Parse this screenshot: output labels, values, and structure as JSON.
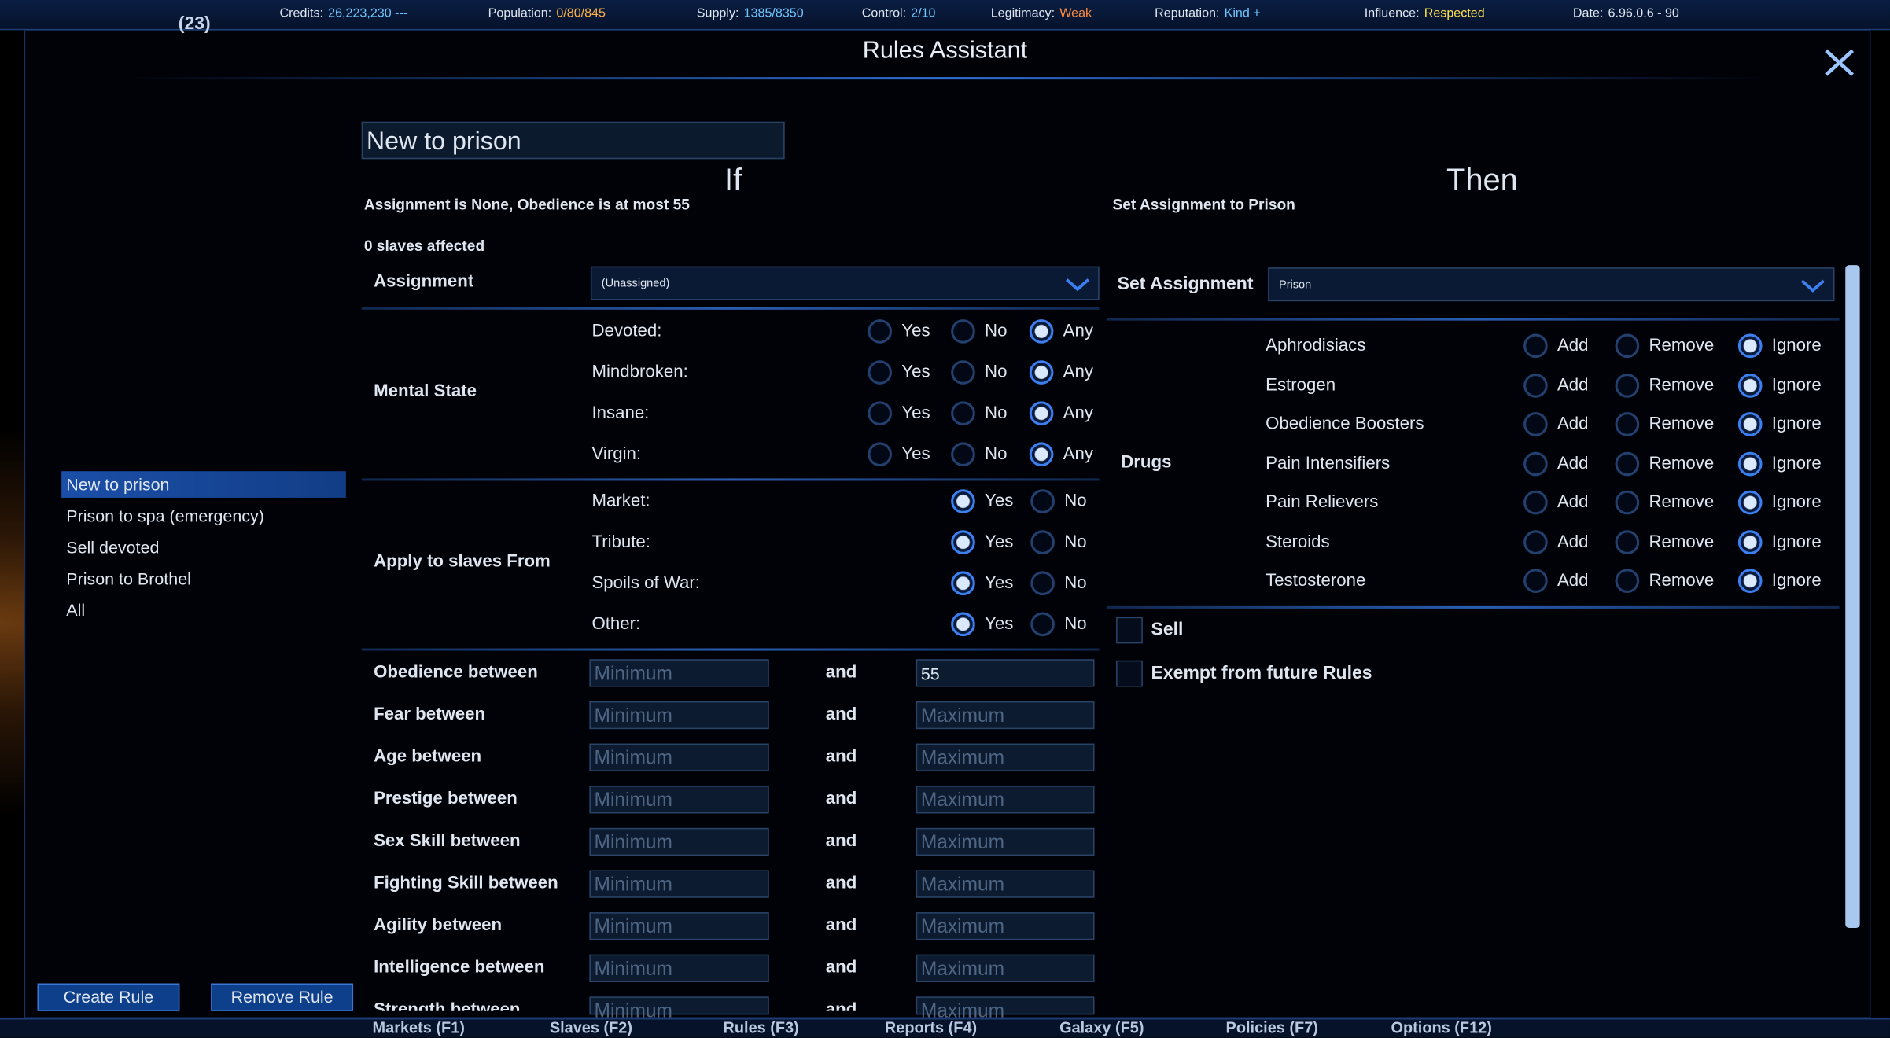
{
  "top_bar": {
    "corner": "(23)",
    "items": [
      {
        "label": "Credits:",
        "value": "26,223,230 ---",
        "color": "#6fc6ff"
      },
      {
        "label": "Population:",
        "value": "0/80/845",
        "color": "#ffb347"
      },
      {
        "label": "Supply:",
        "value": "1385/8350",
        "color": "#6fc6ff"
      },
      {
        "label": "Control:",
        "value": "2/10",
        "color": "#6fc6ff"
      },
      {
        "label": "Legitimacy:",
        "value": "Weak",
        "color": "#ff8a3c"
      },
      {
        "label": "Reputation:",
        "value": "Kind +",
        "color": "#6fc6ff"
      },
      {
        "label": "Influence:",
        "value": "Respected",
        "color": "#ffe14d"
      },
      {
        "label": "Date:",
        "value": "6.96.0.6 - 90",
        "color": "#dfe6f0"
      }
    ]
  },
  "dialog": {
    "title": "Rules Assistant",
    "rule_name": "New to prison",
    "rule_list": {
      "items": [
        "New to prison",
        "Prison to spa (emergency)",
        "Sell devoted",
        "Prison to Brothel",
        "All"
      ],
      "selected": 0
    },
    "buttons": [
      "Create Rule",
      "Remove Rule"
    ],
    "if_section": {
      "heading": "If",
      "summary": "Assignment is None, Obedience is at most 55",
      "affected": "0 slaves affected",
      "assignment": {
        "label": "Assignment",
        "value": "(Unassigned)"
      },
      "mental_state": {
        "label": "Mental State",
        "options": [
          "Yes",
          "No",
          "Any"
        ],
        "rows": [
          {
            "label": "Devoted:",
            "selected": 2
          },
          {
            "label": "Mindbroken:",
            "selected": 2
          },
          {
            "label": "Insane:",
            "selected": 2
          },
          {
            "label": "Virgin:",
            "selected": 2
          }
        ]
      },
      "apply_from": {
        "label": "Apply to slaves From",
        "options": [
          "Yes",
          "No"
        ],
        "rows": [
          {
            "label": "Market:",
            "selected": 0
          },
          {
            "label": "Tribute:",
            "selected": 0
          },
          {
            "label": "Spoils of War:",
            "selected": 0
          },
          {
            "label": "Other:",
            "selected": 0
          }
        ]
      },
      "ranges": {
        "joiner": "and",
        "rows": [
          {
            "label": "Obedience between",
            "min": "Minimum",
            "max": "55",
            "max_filled": true
          },
          {
            "label": "Fear between",
            "min": "Minimum",
            "max": "Maximum"
          },
          {
            "label": "Age between",
            "min": "Minimum",
            "max": "Maximum"
          },
          {
            "label": "Prestige between",
            "min": "Minimum",
            "max": "Maximum"
          },
          {
            "label": "Sex Skill between",
            "min": "Minimum",
            "max": "Maximum"
          },
          {
            "label": "Fighting Skill between",
            "min": "Minimum",
            "max": "Maximum"
          },
          {
            "label": "Agility between",
            "min": "Minimum",
            "max": "Maximum"
          },
          {
            "label": "Intelligence between",
            "min": "Minimum",
            "max": "Maximum"
          },
          {
            "label": "Strength between",
            "min": "Minimum",
            "max": "Maximum"
          }
        ]
      }
    },
    "then_section": {
      "heading": "Then",
      "summary": "Set Assignment to Prison",
      "set_assignment": {
        "label": "Set Assignment",
        "value": "Prison"
      },
      "drugs": {
        "label": "Drugs",
        "options": [
          "Add",
          "Remove",
          "Ignore"
        ],
        "rows": [
          {
            "label": "Aphrodisiacs",
            "selected": 2
          },
          {
            "label": "Estrogen",
            "selected": 2
          },
          {
            "label": "Obedience Boosters",
            "selected": 2
          },
          {
            "label": "Pain Intensifiers",
            "selected": 2
          },
          {
            "label": "Pain Relievers",
            "selected": 2
          },
          {
            "label": "Steroids",
            "selected": 2
          },
          {
            "label": "Testosterone",
            "selected": 2
          }
        ]
      },
      "checkboxes": [
        "Sell",
        "Exempt from future Rules"
      ]
    },
    "tabs": [
      "Markets (F1)",
      "Slaves (F2)",
      "Rules (F3)",
      "Reports (F4)",
      "Galaxy (F5)",
      "Policies (F7)",
      "Options (F12)"
    ]
  }
}
